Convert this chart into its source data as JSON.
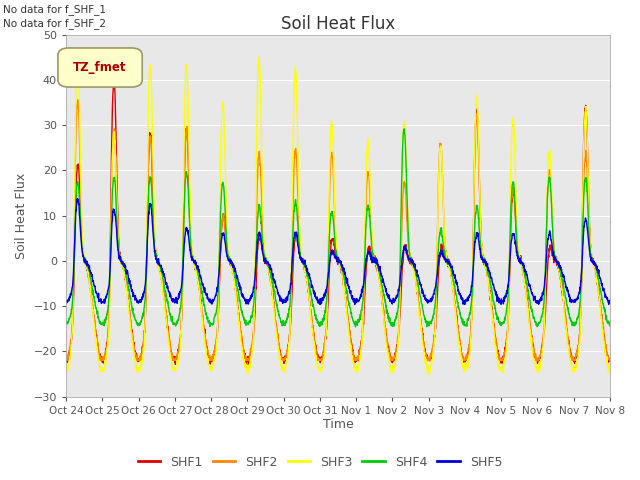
{
  "title": "Soil Heat Flux",
  "ylabel": "Soil Heat Flux",
  "xlabel": "Time",
  "ylim": [
    -30,
    50
  ],
  "background_color": "#e8e8e8",
  "figure_color": "#ffffff",
  "text_color": "#555555",
  "grid_color": "#ffffff",
  "series_colors": {
    "SHF1": "#dd0000",
    "SHF2": "#ff8800",
    "SHF3": "#ffff00",
    "SHF4": "#00cc00",
    "SHF5": "#0000dd"
  },
  "xtick_labels": [
    "Oct 24",
    "Oct 25",
    "Oct 26",
    "Oct 27",
    "Oct 28",
    "Oct 29",
    "Oct 30",
    "Oct 31",
    "Nov 1",
    "Nov 2",
    "Nov 3",
    "Nov 4",
    "Nov 5",
    "Nov 6",
    "Nov 7",
    "Nov 8"
  ],
  "annotations": [
    "No data for f_SHF_1",
    "No data for f_SHF_2"
  ],
  "legend_label": "TZ_fmet",
  "n_days": 15,
  "pts_per_day": 144,
  "day_peak_amplitudes_shf3": [
    49,
    33,
    47,
    47,
    39,
    48,
    46,
    35,
    31,
    35,
    30,
    40,
    36,
    29,
    38
  ],
  "day_peak_amplitudes_shf1": [
    26,
    43,
    32,
    33,
    15,
    11,
    11,
    10,
    8,
    8,
    8,
    37,
    20,
    8,
    38
  ],
  "day_peak_amplitudes_shf2": [
    39,
    33,
    32,
    33,
    15,
    28,
    29,
    28,
    24,
    22,
    30,
    36,
    21,
    25,
    28
  ],
  "day_peak_amplitudes_shf4": [
    20,
    21,
    21,
    22,
    20,
    15,
    16,
    14,
    15,
    31,
    10,
    15,
    20,
    21,
    21
  ],
  "day_peak_amplitudes_shf5": [
    15,
    13,
    14,
    9,
    8,
    8,
    8,
    4,
    4,
    5,
    4,
    8,
    8,
    8,
    11
  ]
}
